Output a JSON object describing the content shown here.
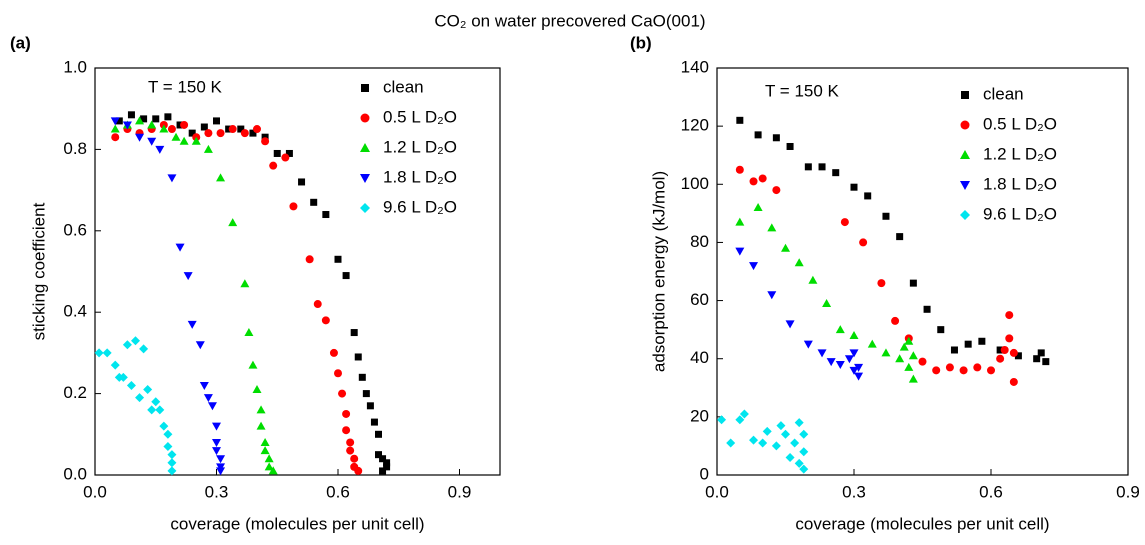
{
  "title": "CO₂ on water precovered CaO(001)",
  "chart_data": [
    {
      "type": "scatter",
      "panel_label": "(a)",
      "annotation": "T = 150 K",
      "x_label": "coverage (molecules per unit cell)",
      "y_label": "sticking coefficient",
      "xlim": [
        0,
        1.0
      ],
      "xticks": [
        {
          "value": 0,
          "label": "0.0"
        },
        0.3,
        0.6,
        0.9
      ],
      "ylim": [
        0,
        1.0
      ],
      "yticks": [
        {
          "value": 0,
          "label": "0.0"
        },
        0.2,
        0.4,
        0.6,
        0.8,
        {
          "value": 1.0,
          "label": "1.0"
        }
      ],
      "legend": "top right",
      "series": [
        {
          "name": "clean",
          "color": "#000000",
          "marker": "square",
          "x": [
            0.06,
            0.09,
            0.12,
            0.15,
            0.18,
            0.21,
            0.24,
            0.27,
            0.3,
            0.33,
            0.36,
            0.39,
            0.42,
            0.45,
            0.48,
            0.51,
            0.54,
            0.57,
            0.6,
            0.62,
            0.64,
            0.65,
            0.66,
            0.67,
            0.68,
            0.69,
            0.7,
            0.7,
            0.71,
            0.72,
            0.72,
            0.71
          ],
          "values": [
            0.87,
            0.885,
            0.875,
            0.875,
            0.88,
            0.86,
            0.84,
            0.855,
            0.87,
            0.85,
            0.85,
            0.84,
            0.83,
            0.79,
            0.79,
            0.72,
            0.67,
            0.64,
            0.53,
            0.49,
            0.35,
            0.29,
            0.24,
            0.2,
            0.17,
            0.13,
            0.1,
            0.05,
            0.04,
            0.03,
            0.02,
            0.01
          ]
        },
        {
          "name": "0.5 L D₂O",
          "color": "#ff0000",
          "marker": "circle",
          "x": [
            0.05,
            0.08,
            0.11,
            0.14,
            0.17,
            0.19,
            0.22,
            0.25,
            0.28,
            0.31,
            0.34,
            0.37,
            0.4,
            0.42,
            0.44,
            0.47,
            0.49,
            0.53,
            0.55,
            0.57,
            0.59,
            0.6,
            0.61,
            0.62,
            0.62,
            0.63,
            0.63,
            0.64,
            0.64,
            0.65
          ],
          "values": [
            0.83,
            0.85,
            0.84,
            0.85,
            0.86,
            0.85,
            0.86,
            0.83,
            0.84,
            0.84,
            0.85,
            0.84,
            0.85,
            0.82,
            0.76,
            0.78,
            0.66,
            0.53,
            0.42,
            0.38,
            0.3,
            0.25,
            0.2,
            0.15,
            0.11,
            0.08,
            0.06,
            0.04,
            0.02,
            0.01
          ]
        },
        {
          "name": "1.2 L D₂O",
          "color": "#00dd00",
          "marker": "triangle-up",
          "x": [
            0.05,
            0.08,
            0.11,
            0.14,
            0.17,
            0.2,
            0.22,
            0.25,
            0.28,
            0.31,
            0.34,
            0.37,
            0.38,
            0.39,
            0.4,
            0.41,
            0.41,
            0.42,
            0.42,
            0.43,
            0.43,
            0.44
          ],
          "values": [
            0.85,
            0.86,
            0.87,
            0.86,
            0.85,
            0.83,
            0.82,
            0.82,
            0.8,
            0.73,
            0.62,
            0.47,
            0.35,
            0.27,
            0.21,
            0.16,
            0.12,
            0.08,
            0.06,
            0.04,
            0.02,
            0.01
          ]
        },
        {
          "name": "1.8 L D₂O",
          "color": "#0000ff",
          "marker": "triangle-down",
          "x": [
            0.05,
            0.08,
            0.11,
            0.14,
            0.16,
            0.19,
            0.21,
            0.23,
            0.24,
            0.26,
            0.27,
            0.28,
            0.29,
            0.3,
            0.3,
            0.3,
            0.31,
            0.31,
            0.31
          ],
          "values": [
            0.87,
            0.86,
            0.83,
            0.82,
            0.8,
            0.73,
            0.56,
            0.49,
            0.37,
            0.32,
            0.22,
            0.19,
            0.17,
            0.12,
            0.08,
            0.06,
            0.04,
            0.02,
            0.01
          ]
        },
        {
          "name": "9.6 L D₂O",
          "color": "#00e5ee",
          "marker": "diamond",
          "x": [
            0.01,
            0.03,
            0.05,
            0.06,
            0.07,
            0.08,
            0.09,
            0.1,
            0.11,
            0.12,
            0.13,
            0.14,
            0.15,
            0.16,
            0.17,
            0.18,
            0.18,
            0.19,
            0.19,
            0.19
          ],
          "values": [
            0.3,
            0.3,
            0.27,
            0.24,
            0.24,
            0.32,
            0.22,
            0.33,
            0.19,
            0.31,
            0.21,
            0.16,
            0.18,
            0.16,
            0.12,
            0.1,
            0.07,
            0.05,
            0.03,
            0.01
          ]
        }
      ]
    },
    {
      "type": "scatter",
      "panel_label": "(b)",
      "annotation": "T = 150 K",
      "x_label": "coverage (molecules per unit cell)",
      "y_label": "adsorption energy (kJ/mol)",
      "xlim": [
        0,
        0.9
      ],
      "xticks": [
        {
          "value": 0,
          "label": "0.0"
        },
        0.3,
        0.6,
        0.9
      ],
      "ylim": [
        0,
        140
      ],
      "yticks": [
        0,
        20,
        40,
        60,
        80,
        100,
        120,
        140
      ],
      "legend": "top right",
      "series": [
        {
          "name": "clean",
          "color": "#000000",
          "marker": "square",
          "x": [
            0.05,
            0.09,
            0.13,
            0.16,
            0.2,
            0.23,
            0.26,
            0.3,
            0.33,
            0.37,
            0.4,
            0.43,
            0.46,
            0.49,
            0.52,
            0.55,
            0.58,
            0.62,
            0.66,
            0.7,
            0.71,
            0.72
          ],
          "values": [
            122,
            117,
            116,
            113,
            106,
            106,
            104,
            99,
            96,
            89,
            82,
            66,
            57,
            50,
            43,
            45,
            46,
            43,
            41,
            40,
            42,
            39
          ]
        },
        {
          "name": "0.5 L D₂O",
          "color": "#ff0000",
          "marker": "circle",
          "x": [
            0.05,
            0.08,
            0.1,
            0.13,
            0.28,
            0.32,
            0.36,
            0.39,
            0.42,
            0.45,
            0.48,
            0.51,
            0.54,
            0.57,
            0.6,
            0.62,
            0.63,
            0.64,
            0.64,
            0.65,
            0.65
          ],
          "values": [
            105,
            101,
            102,
            98,
            87,
            80,
            66,
            53,
            47,
            39,
            36,
            37,
            36,
            37,
            36,
            40,
            43,
            47,
            55,
            32,
            42
          ]
        },
        {
          "name": "1.2 L D₂O",
          "color": "#00dd00",
          "marker": "triangle-up",
          "x": [
            0.05,
            0.09,
            0.12,
            0.15,
            0.18,
            0.21,
            0.24,
            0.27,
            0.3,
            0.34,
            0.37,
            0.4,
            0.41,
            0.42,
            0.42,
            0.43,
            0.43
          ],
          "values": [
            87,
            92,
            85,
            78,
            73,
            67,
            59,
            50,
            48,
            45,
            42,
            40,
            44,
            37,
            46,
            33,
            41
          ]
        },
        {
          "name": "1.8 L D₂O",
          "color": "#0000ff",
          "marker": "triangle-down",
          "x": [
            0.05,
            0.08,
            0.12,
            0.16,
            0.2,
            0.23,
            0.25,
            0.27,
            0.29,
            0.3,
            0.3,
            0.31,
            0.31
          ],
          "values": [
            77,
            72,
            62,
            52,
            45,
            42,
            39,
            38,
            40,
            36,
            42,
            37,
            34
          ]
        },
        {
          "name": "9.6 L D₂O",
          "color": "#00e5ee",
          "marker": "diamond",
          "x": [
            0.01,
            0.03,
            0.05,
            0.06,
            0.08,
            0.1,
            0.11,
            0.13,
            0.14,
            0.15,
            0.16,
            0.17,
            0.18,
            0.18,
            0.19,
            0.19,
            0.19
          ],
          "values": [
            19,
            11,
            19,
            21,
            12,
            11,
            15,
            10,
            17,
            14,
            6,
            11,
            4,
            18,
            8,
            14,
            2
          ]
        }
      ]
    }
  ]
}
